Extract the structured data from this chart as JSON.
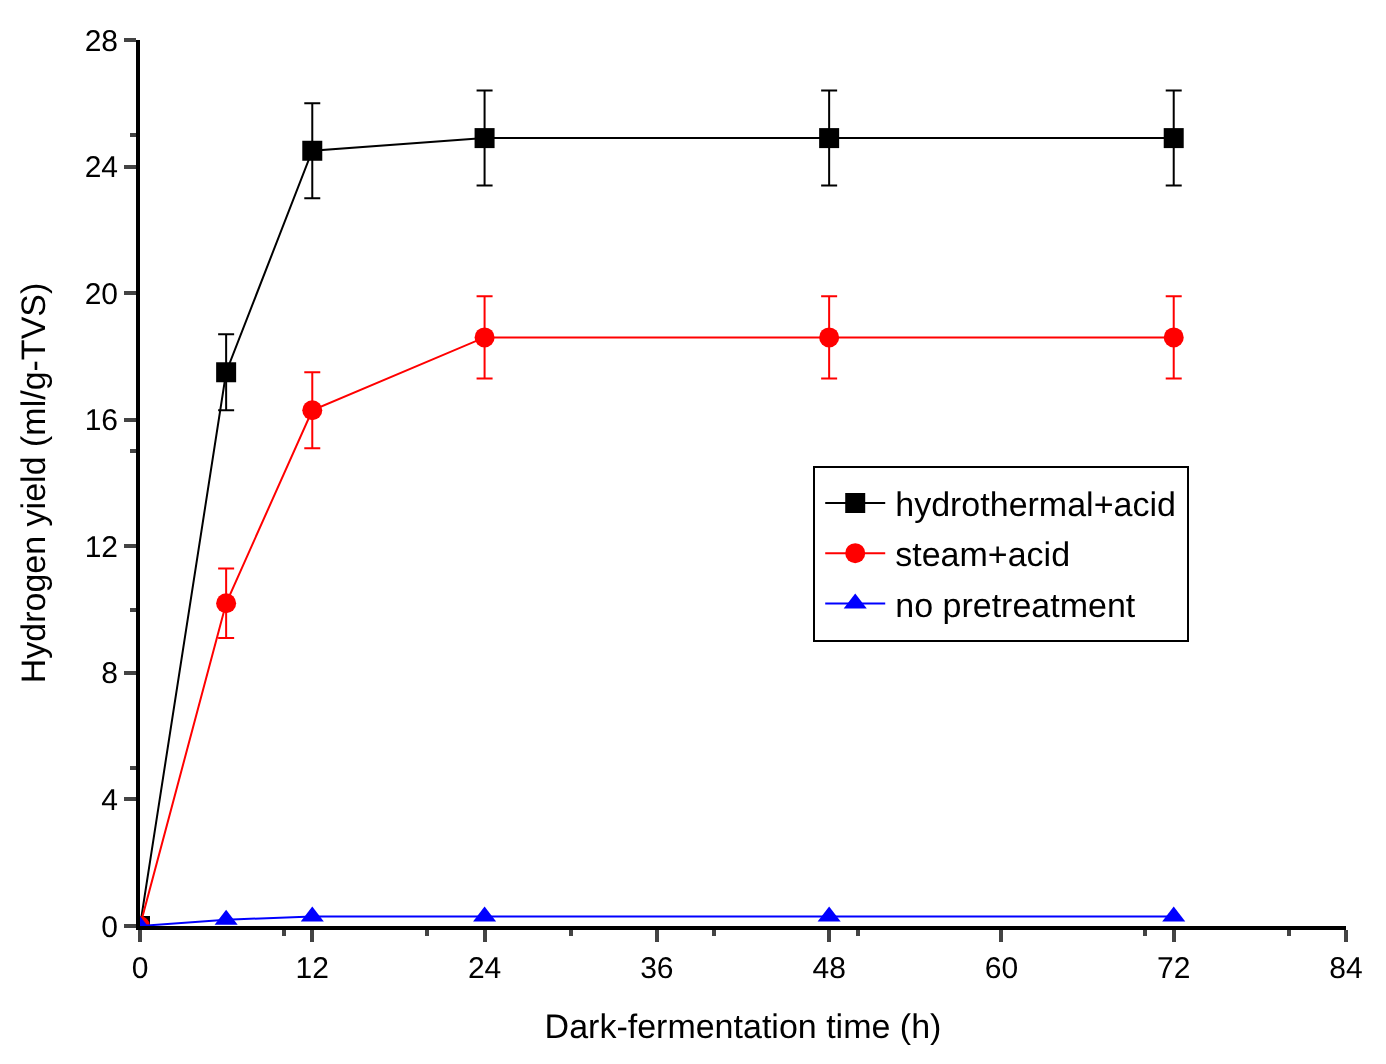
{
  "chart_data": {
    "type": "line",
    "xlabel": "Dark-fermentation time (h)",
    "ylabel": "Hydrogen yield (ml/g-TVS)",
    "x": [
      0,
      6,
      12,
      24,
      48,
      72
    ],
    "xlim": [
      0,
      84
    ],
    "xticks": [
      0,
      12,
      24,
      36,
      48,
      60,
      72,
      84
    ],
    "ylim": [
      0,
      28
    ],
    "yticks": [
      0,
      4,
      8,
      12,
      16,
      20,
      24,
      28
    ],
    "legend": "center right",
    "line_style": "solid",
    "series": [
      {
        "name": "hydrothermal+acid",
        "color": "#000000",
        "marker": "square",
        "values": [
          0,
          17.5,
          24.5,
          24.9,
          24.9,
          24.9
        ],
        "errors": [
          null,
          1.2,
          1.5,
          1.5,
          1.5,
          1.5
        ]
      },
      {
        "name": "steam+acid",
        "color": "#ff0000",
        "marker": "circle",
        "values": [
          0,
          10.2,
          16.3,
          18.6,
          18.6,
          18.6
        ],
        "errors": [
          null,
          1.1,
          1.2,
          1.3,
          1.3,
          1.3
        ]
      },
      {
        "name": "no pretreatment",
        "color": "#0000ff",
        "marker": "triangle",
        "values": [
          0,
          0.2,
          0.3,
          0.3,
          0.3,
          0.3
        ]
      }
    ]
  }
}
